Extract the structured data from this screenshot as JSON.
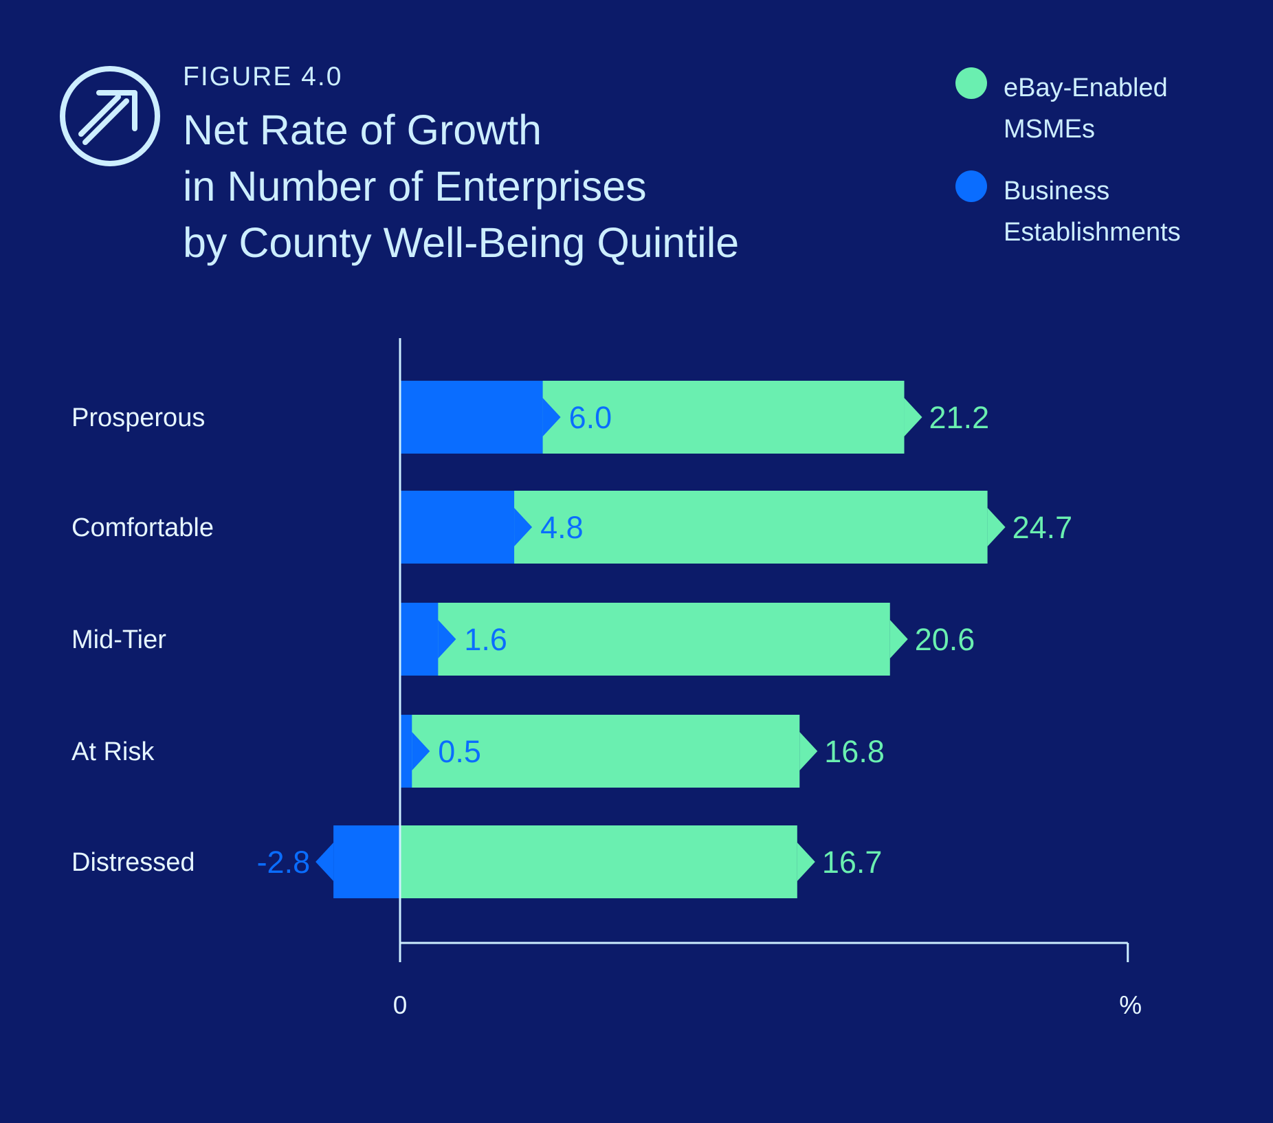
{
  "header": {
    "figure_label": "FIGURE 4.0",
    "title_lines": [
      "Net Rate of Growth",
      "in Number of Enterprises",
      "by County Well-Being Quintile"
    ],
    "logo_icon": "arrow-up-right-circle-icon"
  },
  "legend": {
    "items": [
      {
        "lines": [
          "eBay-Enabled",
          "MSMEs"
        ],
        "color": "#6aefb0"
      },
      {
        "lines": [
          "Business",
          "Establishments"
        ],
        "color": "#0a6dff"
      }
    ]
  },
  "chart_data": {
    "type": "bar",
    "orientation": "horizontal",
    "categories": [
      "Prosperous",
      "Comfortable",
      "Mid-Tier",
      "At Risk",
      "Distressed"
    ],
    "series": [
      {
        "name": "eBay-Enabled MSMEs",
        "color": "#6aefb0",
        "values": [
          21.2,
          24.7,
          20.6,
          16.8,
          16.7
        ]
      },
      {
        "name": "Business Establishments",
        "color": "#0a6dff",
        "values": [
          6.0,
          4.8,
          1.6,
          0.5,
          -2.8
        ]
      }
    ],
    "value_labels": {
      "ebay": [
        "21.2",
        "24.7",
        "20.6",
        "16.8",
        "16.7"
      ],
      "business": [
        "6.0",
        "4.8",
        "1.6",
        "0.5",
        "-2.8"
      ]
    },
    "x_axis": {
      "tick_labels": [
        "0",
        "%"
      ],
      "range": [
        -2.8,
        30.6
      ]
    },
    "grid": false,
    "legend_position": "top-right"
  }
}
